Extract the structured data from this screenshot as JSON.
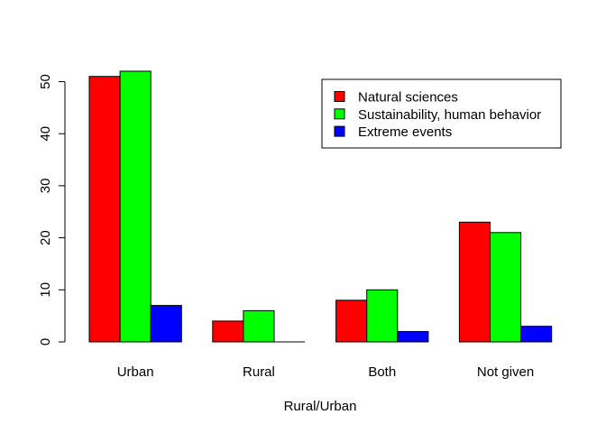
{
  "chart_data": {
    "type": "bar",
    "title": "",
    "xlabel": "Rural/Urban",
    "ylabel": "",
    "ylim": [
      0,
      55
    ],
    "yticks": [
      0,
      10,
      20,
      30,
      40,
      50
    ],
    "categories": [
      "Urban",
      "Rural",
      "Both",
      "Not given"
    ],
    "series": [
      {
        "name": "Natural sciences",
        "color": "#ff0000",
        "values": [
          51,
          4,
          8,
          23
        ]
      },
      {
        "name": "Sustainability, human behavior",
        "color": "#00ff00",
        "values": [
          52,
          6,
          10,
          21
        ]
      },
      {
        "name": "Extreme events",
        "color": "#0000ff",
        "values": [
          7,
          0,
          2,
          3
        ]
      }
    ],
    "legend_position": "top-right",
    "grid": false
  }
}
